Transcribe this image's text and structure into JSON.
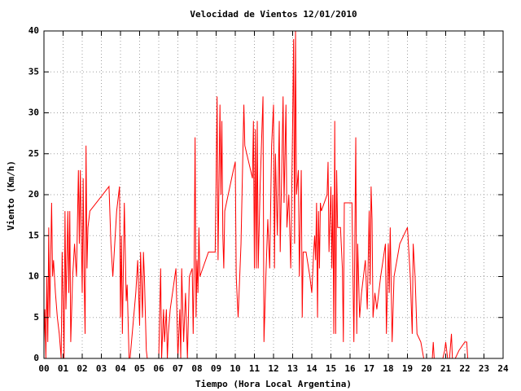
{
  "chart_data": {
    "type": "line",
    "title": "Velocidad de Vientos 12/01/2010",
    "x_label": "Tiempo (Hora Local Argentina)",
    "y_label": "Viento (Km/h)",
    "color": "#ff0000",
    "grid": true,
    "xlim": [
      0,
      24
    ],
    "ylim": [
      0,
      40
    ],
    "xticks": [
      {
        "value": 0,
        "label": "00"
      },
      {
        "value": 1,
        "label": "01"
      },
      {
        "value": 2,
        "label": "02"
      },
      {
        "value": 3,
        "label": "03"
      },
      {
        "value": 4,
        "label": "04"
      },
      {
        "value": 5,
        "label": "05"
      },
      {
        "value": 6,
        "label": "06"
      },
      {
        "value": 7,
        "label": "07"
      },
      {
        "value": 8,
        "label": "08"
      },
      {
        "value": 9,
        "label": "09"
      },
      {
        "value": 10,
        "label": "10"
      },
      {
        "value": 11,
        "label": "11"
      },
      {
        "value": 12,
        "label": "12"
      },
      {
        "value": 13,
        "label": "13"
      },
      {
        "value": 14,
        "label": "14"
      },
      {
        "value": 15,
        "label": "15"
      },
      {
        "value": 16,
        "label": "16"
      },
      {
        "value": 17,
        "label": "17"
      },
      {
        "value": 18,
        "label": "18"
      },
      {
        "value": 19,
        "label": "19"
      },
      {
        "value": 20,
        "label": "20"
      },
      {
        "value": 21,
        "label": "21"
      },
      {
        "value": 22,
        "label": "22"
      },
      {
        "value": 23,
        "label": "23"
      },
      {
        "value": 24,
        "label": "24"
      }
    ],
    "yticks": [
      0,
      5,
      10,
      15,
      20,
      25,
      30,
      35,
      40
    ],
    "x": [
      0,
      0.05,
      0.1,
      0.15,
      0.2,
      0.25,
      0.3,
      0.4,
      0.45,
      0.5,
      0.6,
      0.7,
      0.8,
      0.9,
      0.95,
      1.0,
      1.05,
      1.1,
      1.15,
      1.25,
      1.3,
      1.35,
      1.4,
      1.5,
      1.6,
      1.7,
      1.8,
      1.85,
      1.9,
      2.0,
      2.05,
      2.1,
      2.15,
      2.2,
      2.25,
      2.3,
      2.4,
      3.4,
      3.5,
      3.6,
      3.8,
      3.95,
      4.0,
      4.05,
      4.1,
      4.2,
      4.3,
      4.35,
      4.45,
      4.5,
      4.8,
      4.9,
      5.0,
      5.05,
      5.15,
      5.2,
      5.25,
      5.35,
      5.4,
      6.0,
      6.1,
      6.15,
      6.25,
      6.3,
      6.4,
      6.45,
      6.5,
      6.6,
      6.9,
      7.0,
      7.1,
      7.15,
      7.2,
      7.3,
      7.4,
      7.5,
      7.6,
      7.75,
      7.8,
      7.85,
      7.9,
      7.95,
      8.0,
      8.05,
      8.1,
      8.15,
      8.6,
      8.95,
      9.0,
      9.05,
      9.1,
      9.2,
      9.25,
      9.3,
      9.35,
      9.4,
      9.45,
      9.9,
      10.0,
      10.05,
      10.15,
      10.3,
      10.45,
      10.5,
      10.9,
      10.95,
      11.0,
      11.05,
      11.1,
      11.15,
      11.2,
      11.3,
      11.45,
      11.5,
      11.6,
      11.7,
      11.8,
      11.9,
      12.0,
      12.05,
      12.1,
      12.2,
      12.3,
      12.35,
      12.5,
      12.55,
      12.65,
      12.7,
      12.8,
      12.9,
      13.0,
      13.05,
      13.1,
      13.15,
      13.2,
      13.3,
      13.35,
      13.45,
      13.5,
      13.55,
      13.7,
      13.9,
      14.0,
      14.1,
      14.15,
      14.2,
      14.25,
      14.3,
      14.35,
      14.4,
      14.45,
      14.5,
      14.8,
      14.85,
      14.9,
      15.0,
      15.05,
      15.1,
      15.15,
      15.2,
      15.25,
      15.3,
      15.35,
      15.5,
      15.6,
      15.65,
      15.7,
      16.1,
      16.2,
      16.3,
      16.35,
      16.4,
      16.5,
      16.6,
      16.7,
      16.8,
      16.9,
      17.0,
      17.05,
      17.1,
      17.15,
      17.2,
      17.3,
      17.4,
      17.6,
      17.85,
      17.9,
      18.0,
      18.05,
      18.1,
      18.2,
      18.3,
      18.45,
      18.6,
      19.0,
      19.15,
      19.25,
      19.3,
      19.4,
      19.5,
      19.7,
      19.85,
      20.0,
      20.3,
      20.35,
      20.4,
      20.85,
      20.95,
      21.0,
      21.1,
      21.2,
      21.3,
      21.35,
      21.5,
      21.7,
      22.0,
      22.1,
      22.15
    ],
    "values": [
      2,
      6,
      0,
      10,
      2,
      16,
      5,
      19,
      10,
      12,
      8,
      5,
      3,
      0,
      13,
      7,
      0,
      18,
      6,
      18,
      8,
      18,
      2,
      10,
      14,
      10,
      23,
      14,
      23,
      8,
      22,
      10,
      3,
      26,
      11,
      16,
      18,
      21,
      14,
      10,
      18,
      21,
      5,
      15,
      3,
      19,
      7,
      9,
      0,
      0,
      8,
      12,
      4,
      13,
      5,
      13,
      10,
      1,
      0,
      0,
      11,
      0,
      6,
      2,
      6,
      0,
      3,
      6,
      11,
      0,
      6,
      0,
      11,
      2,
      8,
      0,
      10,
      11,
      3,
      11,
      27,
      5,
      12,
      8,
      16,
      10,
      13,
      13,
      22,
      32,
      12,
      31,
      20,
      29,
      15,
      11,
      18,
      23,
      24,
      10,
      5,
      14,
      31,
      26,
      22,
      29,
      11,
      28,
      11,
      29,
      11,
      21,
      32,
      2,
      10,
      17,
      11,
      26,
      31,
      11,
      25,
      15,
      29,
      13,
      32,
      19,
      31,
      16,
      20,
      11,
      29,
      39,
      14,
      40,
      20,
      23,
      10,
      23,
      5,
      13,
      13,
      10,
      8,
      13,
      15,
      12,
      19,
      5,
      18,
      11,
      19,
      18,
      20,
      24,
      13,
      21,
      11,
      20,
      3,
      29,
      3,
      23,
      16,
      16,
      11,
      2,
      19,
      19,
      2,
      27,
      3,
      14,
      5,
      8,
      10,
      12,
      6,
      18,
      9,
      21,
      17,
      5,
      8,
      6,
      10,
      14,
      3,
      14,
      8,
      16,
      2,
      10,
      12,
      14,
      16,
      10,
      3,
      14,
      10,
      3,
      2,
      0,
      0,
      0,
      2,
      0,
      0,
      1,
      2,
      0,
      0,
      3,
      0,
      0,
      1,
      2,
      2,
      0
    ]
  }
}
